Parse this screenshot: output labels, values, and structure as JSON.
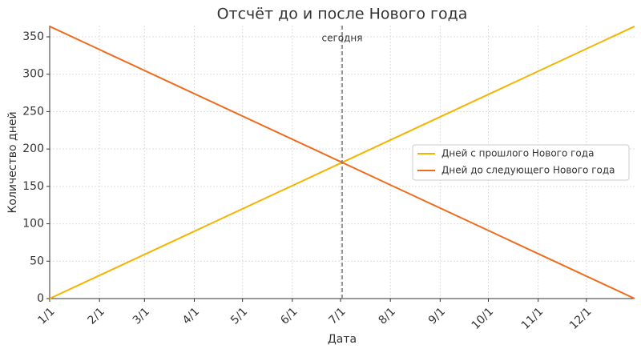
{
  "chart_data": {
    "type": "line",
    "title": "Отсчёт до и после Нового года",
    "xlabel": "Дата",
    "ylabel": "Количество дней",
    "x": [
      0,
      364
    ],
    "series": [
      {
        "name": "Дней с прошлого Нового года",
        "color": "#f5b400",
        "values": [
          0,
          364
        ]
      },
      {
        "name": "Дней до следующего Нового года",
        "color": "#ef6c1f",
        "values": [
          364,
          0
        ]
      }
    ],
    "xlim": [
      0,
      364
    ],
    "ylim": [
      0,
      365
    ],
    "xticks": [
      {
        "value": 0,
        "label": "1/1"
      },
      {
        "value": 31,
        "label": "2/1"
      },
      {
        "value": 59,
        "label": "3/1"
      },
      {
        "value": 90,
        "label": "4/1"
      },
      {
        "value": 120,
        "label": "5/1"
      },
      {
        "value": 151,
        "label": "6/1"
      },
      {
        "value": 181,
        "label": "7/1"
      },
      {
        "value": 212,
        "label": "8/1"
      },
      {
        "value": 243,
        "label": "9/1"
      },
      {
        "value": 273,
        "label": "10/1"
      },
      {
        "value": 304,
        "label": "11/1"
      },
      {
        "value": 334,
        "label": "12/1"
      }
    ],
    "yticks": [
      0,
      50,
      100,
      150,
      200,
      250,
      300,
      350
    ],
    "vline": {
      "x": 182,
      "label": "сегодня",
      "color": "#777777"
    },
    "grid": true,
    "legend": "right"
  }
}
